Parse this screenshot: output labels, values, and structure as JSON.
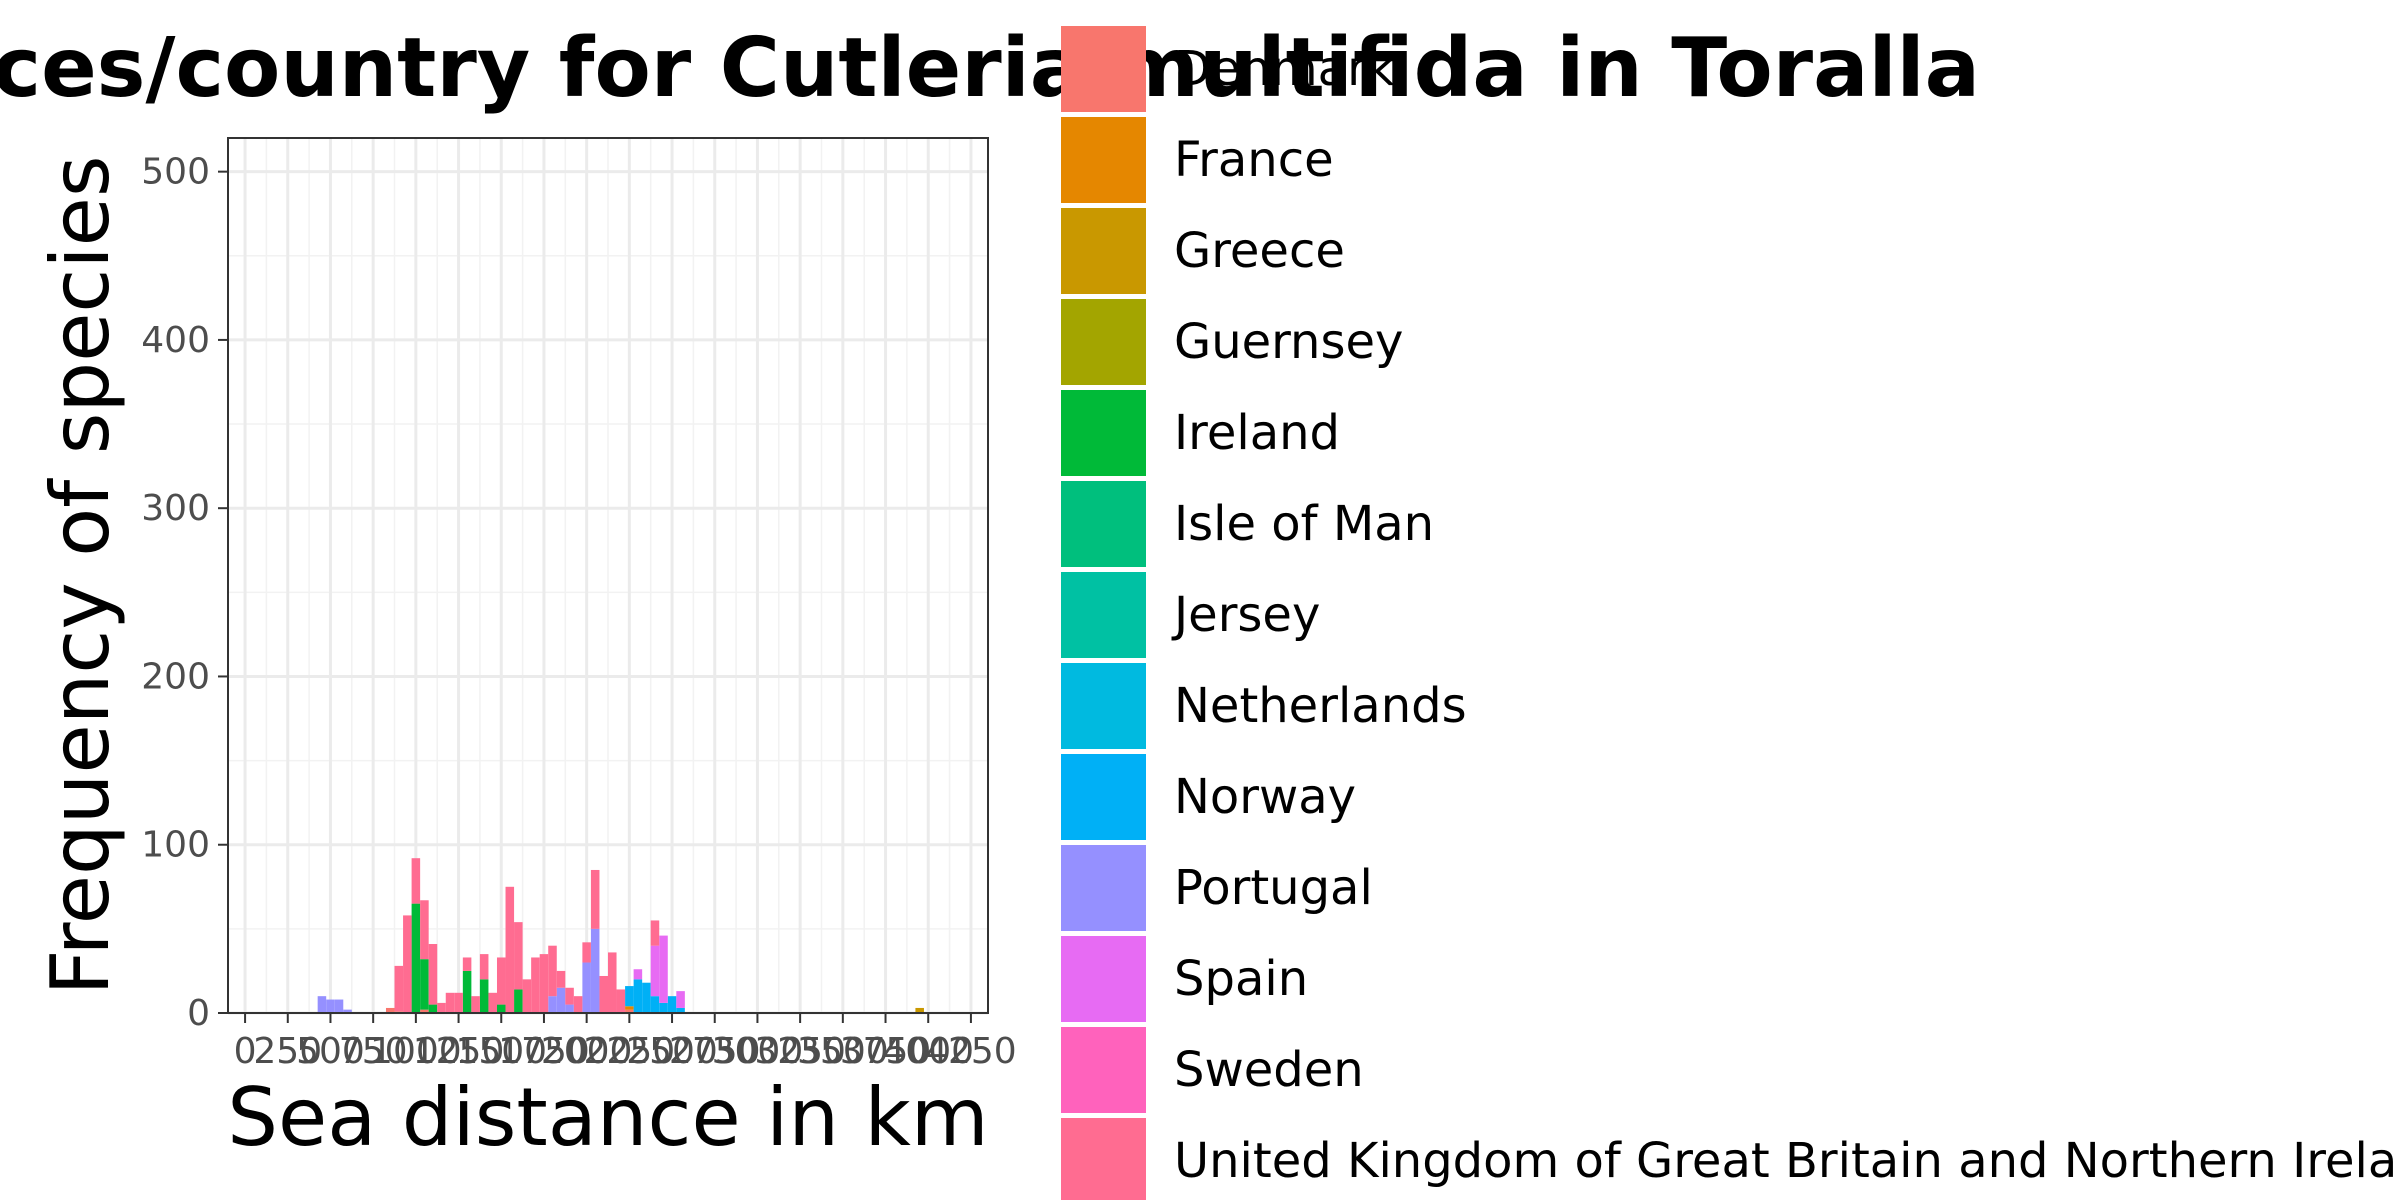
{
  "chart_data": {
    "type": "bar",
    "stacked": true,
    "title": "distances/country for Cutleria multifida in Toralla",
    "xlabel": "Sea distance in km",
    "ylabel": "Frequency of species",
    "xlim": [
      -100,
      4350
    ],
    "ylim": [
      0,
      520
    ],
    "bin_width": 50,
    "x_tick_values": [
      0,
      250,
      500,
      750,
      1000,
      1250,
      1500,
      1750,
      2000,
      2250,
      2500,
      2750,
      3000,
      3250,
      3500,
      3750,
      4000,
      4250
    ],
    "x_tick_labels": [
      "0",
      "250",
      "500",
      "750",
      "1000",
      "1250",
      "1500",
      "1750",
      "2000",
      "2250",
      "2500",
      "2750",
      "3000",
      "3250",
      "3500",
      "3750",
      "4000",
      "4250"
    ],
    "y_tick_values": [
      0,
      100,
      200,
      300,
      400,
      500
    ],
    "y_tick_labels": [
      "0",
      "100",
      "200",
      "300",
      "400",
      "500"
    ],
    "grid": true,
    "legend_position": "right",
    "bin_starts": [
      425,
      475,
      525,
      575,
      625,
      675,
      725,
      775,
      825,
      875,
      925,
      975,
      1025,
      1075,
      1125,
      1175,
      1225,
      1275,
      1325,
      1375,
      1425,
      1475,
      1525,
      1575,
      1625,
      1675,
      1725,
      1775,
      1825,
      1875,
      1925,
      1975,
      2025,
      2075,
      2125,
      2175,
      2225,
      2275,
      2325,
      2375,
      2425,
      2475,
      2525,
      2575,
      2625,
      2675,
      2725,
      2775,
      2825,
      2875,
      2925,
      2975,
      3025,
      3075,
      3125,
      3175,
      3225,
      3275,
      3325,
      3375,
      3425,
      3475,
      3525,
      3575,
      3625,
      3675,
      3725,
      3775,
      3825,
      3875,
      3925,
      3975,
      4025,
      4075,
      4125,
      4175,
      4225
    ],
    "series": [
      {
        "name": "Denmark",
        "color": "#F8766D",
        "values": [
          0,
          0,
          0,
          0,
          0,
          0,
          0,
          0,
          3,
          1,
          0,
          0,
          2,
          0,
          0,
          0,
          0,
          0,
          0,
          0,
          0,
          0,
          0,
          0,
          0,
          0,
          0,
          0,
          0,
          0,
          0,
          0,
          0,
          0,
          0,
          0,
          2,
          0,
          0,
          0,
          0,
          0,
          0,
          0,
          0,
          0,
          0,
          0,
          0,
          0,
          0,
          0,
          0,
          0,
          0,
          0,
          0,
          0,
          0,
          0,
          0,
          0,
          0,
          0,
          0,
          0,
          0,
          0,
          0,
          0,
          0,
          0,
          0,
          0,
          0,
          0,
          0
        ]
      },
      {
        "name": "France",
        "color": "#E58700",
        "values": [
          0,
          0,
          0,
          0,
          0,
          0,
          0,
          0,
          0,
          0,
          0,
          0,
          0,
          0,
          0,
          0,
          0,
          0,
          0,
          0,
          0,
          0,
          0,
          0,
          0,
          0,
          0,
          0,
          0,
          0,
          0,
          0,
          0,
          0,
          0,
          0,
          2,
          0,
          0,
          0,
          0,
          0,
          0,
          0,
          0,
          0,
          0,
          0,
          0,
          0,
          0,
          0,
          0,
          0,
          0,
          0,
          0,
          0,
          0,
          0,
          0,
          0,
          0,
          0,
          0,
          0,
          0,
          0,
          0,
          0,
          0,
          0,
          0,
          0,
          0,
          0,
          0
        ]
      },
      {
        "name": "Greece",
        "color": "#C99800",
        "values": [
          0,
          0,
          0,
          0,
          0,
          0,
          0,
          0,
          0,
          0,
          0,
          0,
          0,
          0,
          0,
          0,
          0,
          0,
          0,
          0,
          0,
          0,
          0,
          0,
          0,
          0,
          0,
          0,
          0,
          0,
          0,
          0,
          0,
          0,
          0,
          0,
          0,
          0,
          0,
          0,
          0,
          0,
          0,
          0,
          0,
          0,
          0,
          0,
          0,
          0,
          0,
          0,
          0,
          0,
          0,
          0,
          0,
          0,
          0,
          0,
          0,
          0,
          0,
          0,
          0,
          0,
          0,
          0,
          0,
          0,
          3,
          0,
          0,
          0,
          0,
          0,
          0
        ]
      },
      {
        "name": "Guernsey",
        "color": "#A3A500",
        "values": [
          0,
          0,
          0,
          0,
          0,
          0,
          0,
          0,
          0,
          0,
          0,
          0,
          0,
          0,
          0,
          0,
          0,
          0,
          0,
          0,
          0,
          0,
          0,
          0,
          0,
          0,
          0,
          0,
          0,
          0,
          0,
          0,
          0,
          0,
          0,
          0,
          0,
          0,
          0,
          0,
          0,
          0,
          0,
          0,
          0,
          0,
          0,
          0,
          0,
          0,
          0,
          0,
          0,
          0,
          0,
          0,
          0,
          0,
          0,
          0,
          0,
          0,
          0,
          0,
          0,
          0,
          0,
          0,
          0,
          0,
          0,
          0,
          0,
          0,
          0,
          0,
          0
        ]
      },
      {
        "name": "Ireland",
        "color": "#00BA38",
        "values": [
          0,
          0,
          0,
          0,
          0,
          0,
          0,
          0,
          0,
          0,
          0,
          65,
          30,
          5,
          0,
          0,
          0,
          25,
          0,
          20,
          0,
          5,
          0,
          14,
          0,
          0,
          0,
          0,
          0,
          0,
          0,
          0,
          0,
          0,
          0,
          0,
          0,
          0,
          0,
          0,
          0,
          0,
          0,
          0,
          0,
          0,
          0,
          0,
          0,
          0,
          0,
          0,
          0,
          0,
          0,
          0,
          0,
          0,
          0,
          0,
          0,
          0,
          0,
          0,
          0,
          0,
          0,
          0,
          0,
          0,
          0,
          0,
          0,
          0,
          0,
          0,
          0
        ]
      },
      {
        "name": "Isle of Man",
        "color": "#00BF7D",
        "values": [
          0,
          0,
          0,
          0,
          0,
          0,
          0,
          0,
          0,
          0,
          0,
          0,
          0,
          0,
          0,
          0,
          0,
          0,
          0,
          0,
          0,
          0,
          0,
          0,
          0,
          0,
          0,
          0,
          0,
          0,
          0,
          0,
          0,
          0,
          0,
          0,
          0,
          0,
          0,
          0,
          0,
          0,
          0,
          0,
          0,
          0,
          0,
          0,
          0,
          0,
          0,
          0,
          0,
          0,
          0,
          0,
          0,
          0,
          0,
          0,
          0,
          0,
          0,
          0,
          0,
          0,
          0,
          0,
          0,
          0,
          0,
          0,
          0,
          0,
          0,
          0,
          0
        ]
      },
      {
        "name": "Jersey",
        "color": "#00C1A3",
        "values": [
          0,
          0,
          0,
          0,
          0,
          0,
          0,
          0,
          0,
          0,
          0,
          0,
          0,
          0,
          0,
          0,
          0,
          0,
          0,
          0,
          0,
          0,
          0,
          0,
          0,
          0,
          0,
          0,
          0,
          0,
          0,
          0,
          0,
          0,
          0,
          0,
          0,
          0,
          0,
          0,
          0,
          0,
          0,
          0,
          0,
          0,
          0,
          0,
          0,
          0,
          0,
          0,
          0,
          0,
          0,
          0,
          0,
          0,
          0,
          0,
          0,
          0,
          0,
          0,
          0,
          0,
          0,
          0,
          0,
          0,
          0,
          0,
          0,
          0,
          0,
          0,
          0
        ]
      },
      {
        "name": "Netherlands",
        "color": "#00BAE0",
        "values": [
          0,
          0,
          0,
          0,
          0,
          0,
          0,
          0,
          0,
          0,
          0,
          0,
          0,
          0,
          0,
          0,
          0,
          0,
          0,
          0,
          0,
          0,
          0,
          0,
          0,
          0,
          0,
          0,
          0,
          0,
          0,
          0,
          0,
          0,
          0,
          0,
          0,
          0,
          0,
          0,
          0,
          0,
          0,
          0,
          0,
          0,
          0,
          0,
          0,
          0,
          0,
          0,
          0,
          0,
          0,
          0,
          0,
          0,
          0,
          0,
          0,
          0,
          0,
          0,
          0,
          0,
          0,
          0,
          0,
          0,
          0,
          0,
          0,
          0,
          0,
          0,
          0
        ]
      },
      {
        "name": "Norway",
        "color": "#00B0F6",
        "values": [
          0,
          0,
          0,
          0,
          0,
          0,
          0,
          0,
          0,
          0,
          0,
          0,
          0,
          0,
          0,
          0,
          0,
          0,
          0,
          0,
          0,
          0,
          0,
          0,
          0,
          0,
          0,
          0,
          0,
          0,
          0,
          0,
          0,
          0,
          0,
          0,
          12,
          20,
          18,
          10,
          6,
          10,
          3,
          0,
          0,
          0,
          0,
          0,
          0,
          0,
          0,
          0,
          0,
          0,
          0,
          0,
          0,
          0,
          0,
          0,
          0,
          0,
          0,
          0,
          0,
          0,
          0,
          0,
          0,
          0,
          0,
          0,
          0,
          0,
          0,
          0,
          0
        ]
      },
      {
        "name": "Portugal",
        "color": "#9590FF",
        "values": [
          10,
          8,
          8,
          2,
          0,
          0,
          0,
          0,
          0,
          0,
          0,
          0,
          0,
          0,
          0,
          0,
          0,
          0,
          0,
          0,
          0,
          0,
          0,
          0,
          0,
          0,
          0,
          10,
          15,
          5,
          0,
          30,
          50,
          0,
          0,
          0,
          0,
          0,
          0,
          0,
          0,
          0,
          0,
          0,
          0,
          0,
          0,
          0,
          0,
          0,
          0,
          0,
          0,
          0,
          0,
          0,
          0,
          0,
          0,
          0,
          0,
          0,
          0,
          0,
          0,
          0,
          0,
          0,
          0,
          0,
          0,
          0,
          0,
          0,
          0,
          0,
          0
        ]
      },
      {
        "name": "Spain",
        "color": "#E76BF3",
        "values": [
          0,
          0,
          0,
          0,
          0,
          0,
          0,
          0,
          0,
          0,
          0,
          0,
          0,
          0,
          0,
          0,
          0,
          0,
          0,
          0,
          0,
          0,
          0,
          0,
          0,
          0,
          0,
          0,
          0,
          0,
          0,
          0,
          0,
          0,
          0,
          0,
          0,
          6,
          0,
          30,
          40,
          0,
          10,
          0,
          0,
          0,
          0,
          0,
          0,
          0,
          0,
          0,
          0,
          0,
          0,
          0,
          0,
          0,
          0,
          0,
          0,
          0,
          0,
          0,
          0,
          0,
          0,
          0,
          0,
          0,
          0,
          0,
          0,
          0,
          0,
          0,
          0
        ]
      },
      {
        "name": "Sweden",
        "color": "#FF62BC",
        "values": [
          0,
          0,
          0,
          0,
          0,
          0,
          0,
          0,
          0,
          0,
          0,
          0,
          0,
          0,
          0,
          0,
          0,
          0,
          0,
          0,
          0,
          0,
          0,
          0,
          0,
          0,
          0,
          0,
          0,
          0,
          0,
          0,
          0,
          0,
          0,
          0,
          0,
          0,
          0,
          0,
          0,
          0,
          0,
          0,
          0,
          0,
          0,
          0,
          0,
          0,
          0,
          0,
          0,
          0,
          0,
          0,
          0,
          0,
          0,
          0,
          0,
          0,
          0,
          0,
          0,
          0,
          0,
          0,
          0,
          0,
          0,
          0,
          0,
          0,
          0,
          0,
          0
        ]
      },
      {
        "name": "United Kingdom of Great Britain and Northern Ireland",
        "color": "#FF6C91",
        "values": [
          0,
          0,
          0,
          0,
          0,
          0,
          0,
          0,
          0,
          27,
          58,
          27,
          35,
          36,
          6,
          12,
          12,
          8,
          10,
          15,
          12,
          28,
          75,
          40,
          20,
          33,
          35,
          30,
          10,
          10,
          10,
          12,
          35,
          22,
          36,
          14,
          0,
          0,
          0,
          15,
          0,
          0,
          0,
          0,
          0,
          0,
          0,
          0,
          0,
          0,
          0,
          0,
          0,
          0,
          0,
          0,
          0,
          0,
          0,
          0,
          0,
          0,
          0,
          0,
          0,
          0,
          0,
          0,
          0,
          0,
          0,
          0,
          0,
          0,
          0,
          0,
          0
        ]
      }
    ]
  }
}
